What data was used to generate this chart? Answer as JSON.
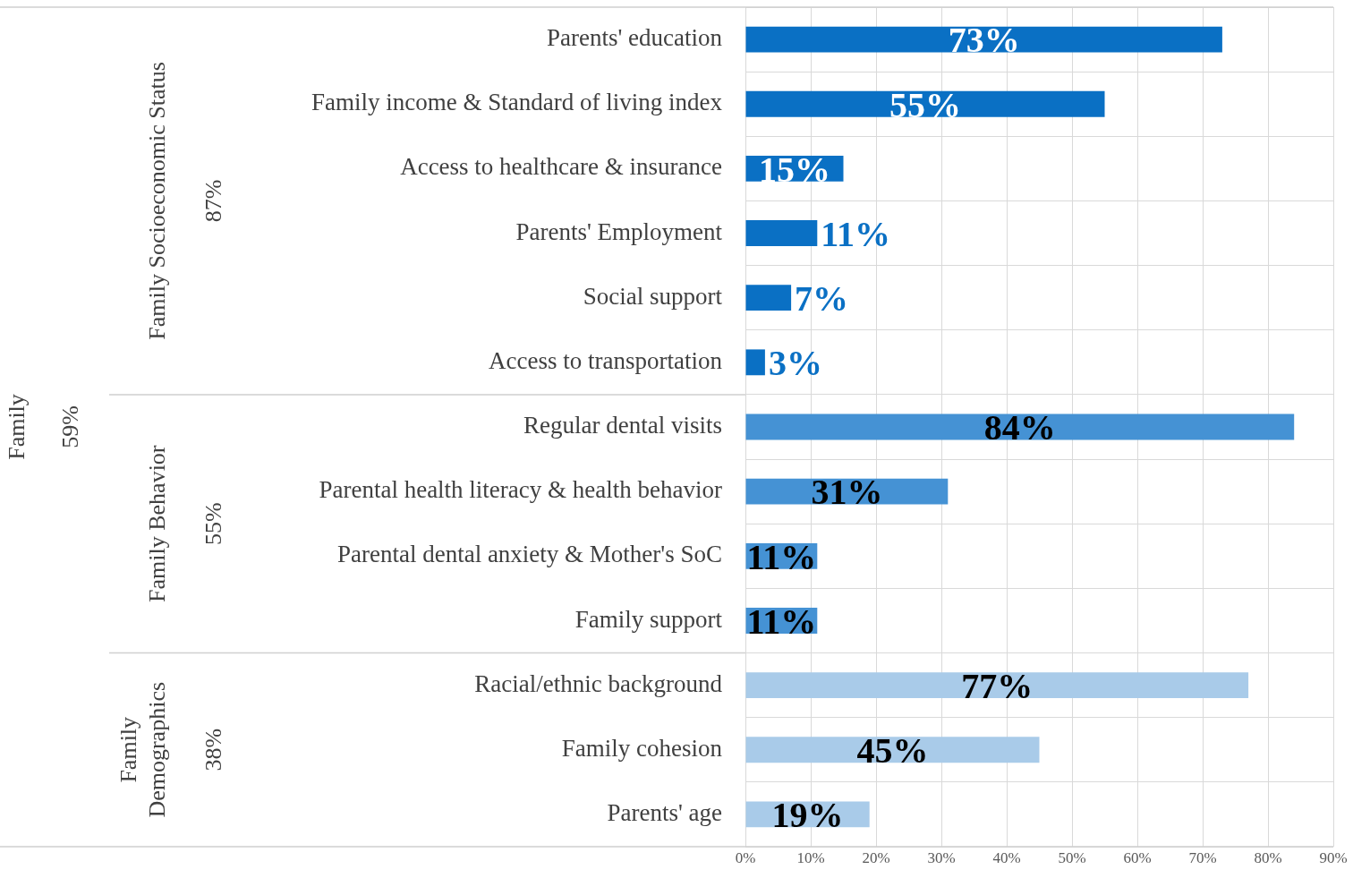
{
  "chart_data": {
    "type": "bar",
    "orientation": "horizontal",
    "categories": [
      "Parents' education",
      "Family income & Standard of living index",
      "Access to healthcare & insurance",
      "Parents' Employment",
      "Social support",
      "Access to transportation",
      "Regular dental visits",
      "Parental health literacy & health behavior",
      "Parental dental anxiety & Mother's SoC",
      "Family support",
      "Racial/ethnic background",
      "Family cohesion",
      "Parents' age"
    ],
    "values": [
      73,
      55,
      15,
      11,
      7,
      3,
      84,
      31,
      11,
      11,
      77,
      45,
      19
    ],
    "colors": [
      "#0a70c4",
      "#0a70c4",
      "#0a70c4",
      "#0a70c4",
      "#0a70c4",
      "#0a70c4",
      "#4592d4",
      "#4592d4",
      "#4592d4",
      "#4592d4",
      "#a9cbe9",
      "#a9cbe9",
      "#a9cbe9"
    ],
    "value_labels": [
      "73%",
      "55%",
      "15%",
      "11%",
      "7%",
      "3%",
      "84%",
      "31%",
      "11%",
      "11%",
      "77%",
      "45%",
      "19%"
    ],
    "xlim": [
      0,
      90
    ],
    "xticks": [
      {
        "value": 0,
        "label": "0%"
      },
      {
        "value": 10,
        "label": "10%"
      },
      {
        "value": 20,
        "label": "20%"
      },
      {
        "value": 30,
        "label": "30%"
      },
      {
        "value": 40,
        "label": "40%"
      },
      {
        "value": 50,
        "label": "50%"
      },
      {
        "value": 60,
        "label": "60%"
      },
      {
        "value": 70,
        "label": "70%"
      },
      {
        "value": 80,
        "label": "80%"
      },
      {
        "value": 90,
        "label": "90%"
      }
    ],
    "annotations": [
      "Family",
      "59%",
      "Family Socioeconomic Status",
      "87%",
      "Family Behavior",
      "55%",
      "Family Demographics",
      "38%"
    ],
    "grid": true,
    "legend": false
  }
}
